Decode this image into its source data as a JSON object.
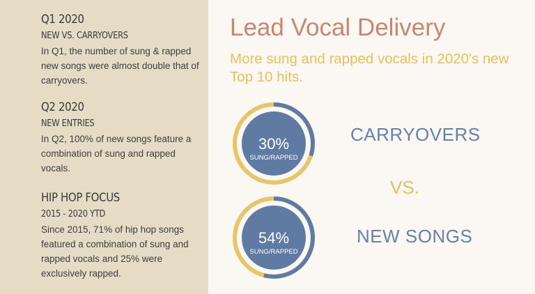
{
  "sidebar": {
    "sections": [
      {
        "title": "Q1 2020",
        "subtitle": "NEW VS. CARRYOVERS",
        "body": "In Q1, the number of sung & rapped new songs were almost double that of carryovers."
      },
      {
        "title": "Q2 2020",
        "subtitle": "NEW ENTRIES",
        "body": "In Q2, 100% of new songs feature a combination of sung and rapped vocals."
      },
      {
        "title": "HIP HOP FOCUS",
        "subtitle": "2015 - 2020 YTD",
        "body": "Since 2015, 71% of hip hop songs featured a combination of sung and rapped vocals and 25% were exclusively rapped."
      }
    ]
  },
  "main": {
    "title": "Lead Vocal Delivery",
    "subtitle": "More sung and rapped vocals in 2020's new Top 10 hits.",
    "vs_label": "VS.",
    "stats": [
      {
        "percent_text": "30%",
        "percent_value": 30,
        "caption": "SUNG/RAPPED",
        "label": "CARRYOVERS"
      },
      {
        "percent_text": "54%",
        "percent_value": 54,
        "caption": "SUNG/RAPPED",
        "label": "NEW SONGS"
      }
    ]
  },
  "colors": {
    "left_panel": "#e6dcc6",
    "background": "#fbf7f3",
    "title": "#c88670",
    "accent_gold": "#e6c060",
    "accent_blue": "#5f7ba3"
  }
}
